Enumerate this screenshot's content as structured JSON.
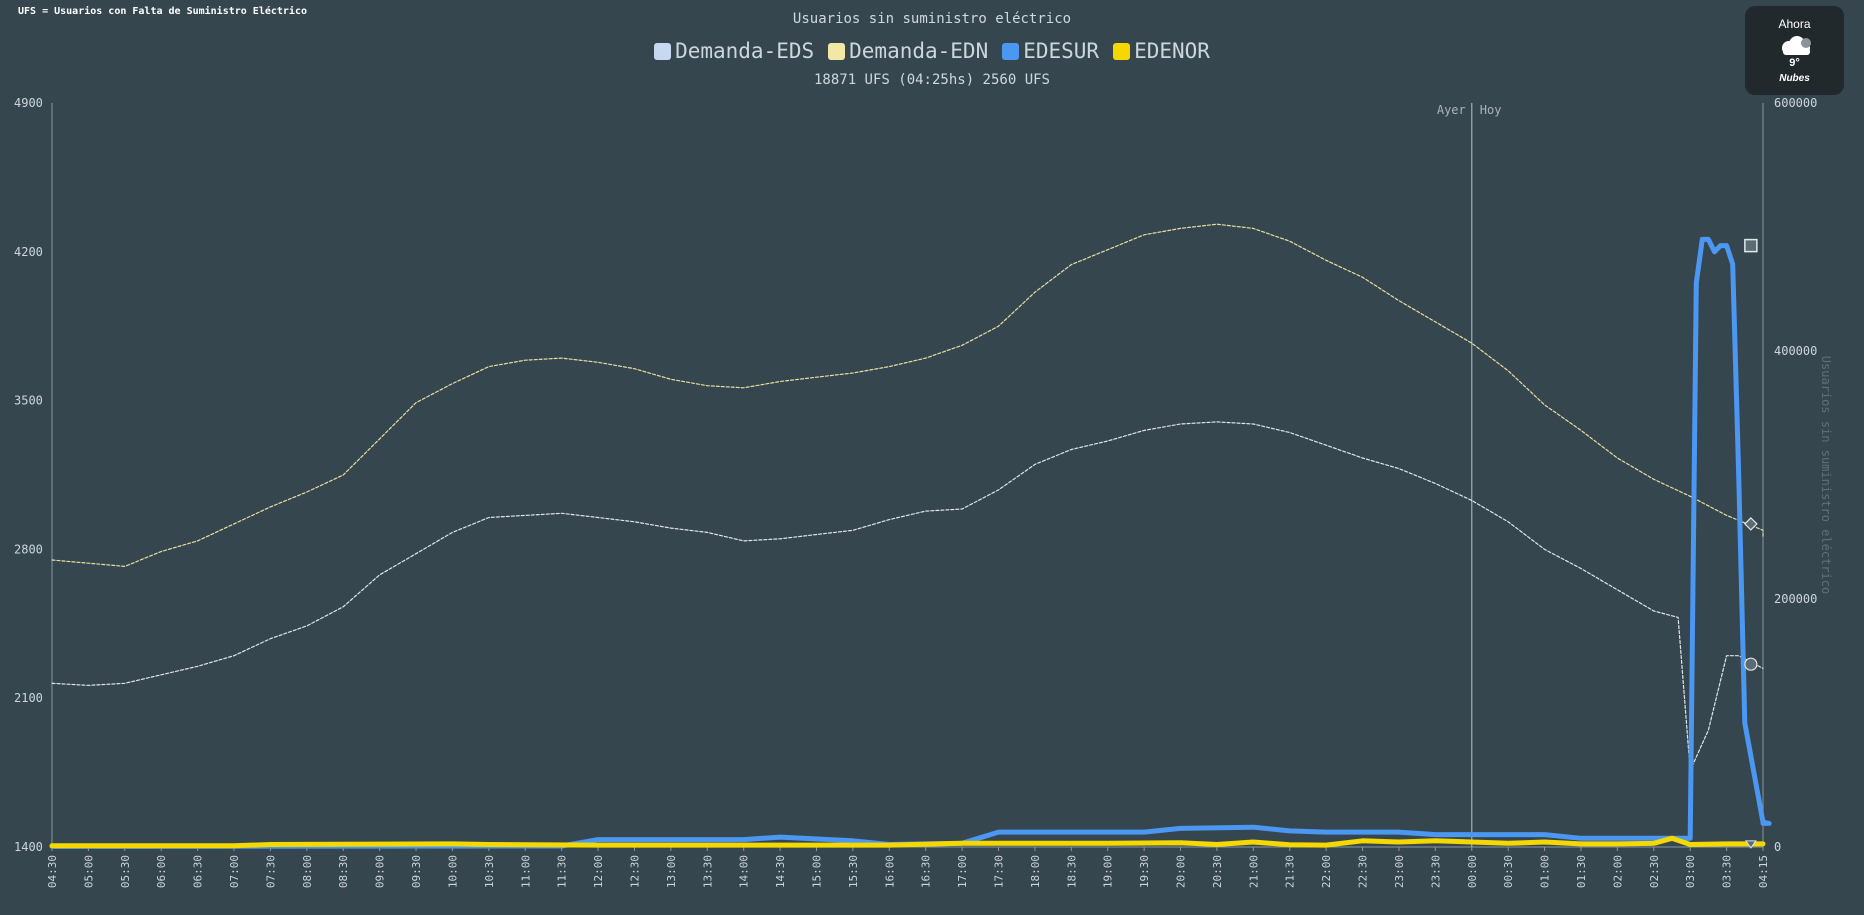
{
  "note": "UFS = Usuarios con Falta de Suministro Eléctrico",
  "weather": {
    "title": "Ahora",
    "icon": "cloud-icon",
    "temp": "9°",
    "description": "Nubes"
  },
  "colors": {
    "background": "#36464f",
    "edesur": "#4b97f1",
    "edenor": "#f5d800",
    "demanda_eds": "#cfdff0",
    "demanda_edn": "#f0e6a0"
  },
  "chart_data": {
    "type": "line",
    "title": "Usuarios sin suministro eléctrico",
    "subtitle": "18871 UFS (04:25hs) 2560 UFS",
    "legend": [
      {
        "name": "Demanda-EDS",
        "color": "#c6d9f1"
      },
      {
        "name": "Demanda-EDN",
        "color": "#f3e7a6"
      },
      {
        "name": "EDESUR",
        "color": "#4b97f1"
      },
      {
        "name": "EDENOR",
        "color": "#f5d800"
      }
    ],
    "legend_position": "top-center",
    "x_ticks": [
      "04:30",
      "05:00",
      "05:30",
      "06:00",
      "06:30",
      "07:00",
      "07:30",
      "08:00",
      "08:30",
      "09:00",
      "09:30",
      "10:00",
      "10:30",
      "11:00",
      "11:30",
      "12:00",
      "12:30",
      "13:00",
      "13:30",
      "14:00",
      "14:30",
      "15:00",
      "15:30",
      "16:00",
      "16:30",
      "17:00",
      "17:30",
      "18:00",
      "18:30",
      "19:00",
      "19:30",
      "20:00",
      "20:30",
      "21:00",
      "21:30",
      "22:00",
      "22:30",
      "23:00",
      "23:30",
      "00:00",
      "00:30",
      "01:00",
      "01:30",
      "02:00",
      "02:30",
      "03:00",
      "03:30",
      "04:15"
    ],
    "y_left": {
      "ticks": [
        1400,
        2100,
        2800,
        3500,
        4200,
        4900
      ],
      "min": 1400,
      "max": 4900
    },
    "y_right": {
      "ticks": [
        0,
        200000,
        400000,
        600000
      ],
      "ylabel": "Usuarios sin suministro eléctrico",
      "min": 0,
      "max": 600000
    },
    "annotations": {
      "ayer": "Ayer",
      "hoy": "Hoy",
      "divider_at": "00:00"
    },
    "series": [
      {
        "name": "Demanda-EDN",
        "axis": "left",
        "color": "#e6dfa1",
        "style": "dashed",
        "x": [
          "04:30",
          "05:00",
          "05:30",
          "06:00",
          "06:30",
          "07:00",
          "07:30",
          "08:00",
          "08:30",
          "09:00",
          "09:30",
          "10:00",
          "10:30",
          "11:00",
          "11:30",
          "12:00",
          "12:30",
          "13:00",
          "13:30",
          "14:00",
          "14:30",
          "15:00",
          "15:30",
          "16:00",
          "16:30",
          "17:00",
          "17:30",
          "18:00",
          "18:30",
          "19:00",
          "19:30",
          "20:00",
          "20:30",
          "21:00",
          "21:30",
          "22:00",
          "22:30",
          "23:00",
          "23:30",
          "00:00",
          "00:30",
          "01:00",
          "01:30",
          "02:00",
          "02:30",
          "03:00",
          "03:30",
          "04:00",
          "04:15"
        ],
        "values": [
          2750,
          2735,
          2720,
          2790,
          2840,
          2920,
          3000,
          3070,
          3150,
          3320,
          3490,
          3580,
          3660,
          3690,
          3700,
          3680,
          3650,
          3600,
          3570,
          3560,
          3590,
          3610,
          3630,
          3660,
          3700,
          3760,
          3850,
          4010,
          4140,
          4210,
          4280,
          4310,
          4330,
          4310,
          4250,
          4160,
          4080,
          3970,
          3870,
          3770,
          3640,
          3480,
          3360,
          3230,
          3130,
          3050,
          2960,
          2890,
          2860
        ]
      },
      {
        "name": "Demanda-EDS",
        "axis": "left",
        "color": "#dfe5ea",
        "style": "dashed",
        "x": [
          "04:30",
          "05:00",
          "05:30",
          "06:00",
          "06:30",
          "07:00",
          "07:30",
          "08:00",
          "08:30",
          "09:00",
          "09:30",
          "10:00",
          "10:30",
          "11:00",
          "11:30",
          "12:00",
          "12:30",
          "13:00",
          "13:30",
          "14:00",
          "14:30",
          "15:00",
          "15:30",
          "16:00",
          "16:30",
          "17:00",
          "17:30",
          "18:00",
          "18:30",
          "19:00",
          "19:30",
          "20:00",
          "20:30",
          "21:00",
          "21:30",
          "22:00",
          "22:30",
          "23:00",
          "23:30",
          "00:00",
          "00:30",
          "01:00",
          "01:30",
          "02:00",
          "02:30",
          "02:50",
          "03:00",
          "03:15",
          "03:30",
          "03:40",
          "04:00",
          "04:15"
        ],
        "values": [
          2170,
          2160,
          2170,
          2210,
          2250,
          2300,
          2380,
          2440,
          2530,
          2680,
          2780,
          2880,
          2950,
          2960,
          2970,
          2950,
          2930,
          2900,
          2880,
          2840,
          2850,
          2870,
          2890,
          2940,
          2980,
          2990,
          3080,
          3200,
          3270,
          3310,
          3360,
          3390,
          3400,
          3390,
          3350,
          3290,
          3230,
          3180,
          3110,
          3030,
          2930,
          2800,
          2710,
          2610,
          2510,
          2480,
          1760,
          1950,
          2300,
          2300,
          2240,
          2240
        ]
      },
      {
        "name": "EDESUR",
        "axis": "right",
        "color": "#4b97f1",
        "style": "solid",
        "x": [
          "04:30",
          "11:30",
          "12:00",
          "14:00",
          "14:30",
          "15:30",
          "16:00",
          "17:00",
          "17:30",
          "19:00",
          "19:30",
          "20:00",
          "21:00",
          "21:30",
          "22:00",
          "23:00",
          "23:30",
          "00:00",
          "01:00",
          "01:30",
          "02:00",
          "02:30",
          "03:00",
          "03:05",
          "03:10",
          "03:15",
          "03:20",
          "03:25",
          "03:30",
          "03:35",
          "03:40",
          "03:45",
          "04:00",
          "04:05",
          "04:15"
        ],
        "values": [
          500,
          800,
          6000,
          6000,
          8000,
          5000,
          2000,
          3000,
          12000,
          12000,
          12000,
          15000,
          16000,
          13000,
          12000,
          12000,
          10000,
          10000,
          10000,
          7000,
          7000,
          7000,
          7000,
          455000,
          490000,
          490000,
          480000,
          485000,
          485000,
          470000,
          300000,
          100000,
          20000,
          19000,
          19000
        ]
      },
      {
        "name": "EDENOR",
        "axis": "right",
        "color": "#f5d800",
        "style": "solid",
        "x": [
          "04:30",
          "07:00",
          "07:30",
          "10:00",
          "10:30",
          "12:00",
          "16:00",
          "17:00",
          "19:00",
          "20:00",
          "20:30",
          "21:00",
          "21:30",
          "22:00",
          "22:30",
          "23:00",
          "23:30",
          "00:00",
          "00:30",
          "01:00",
          "01:30",
          "02:00",
          "02:30",
          "02:45",
          "03:00",
          "03:30",
          "04:00",
          "04:15"
        ],
        "values": [
          1000,
          1000,
          2000,
          2500,
          2000,
          1500,
          1500,
          3000,
          3000,
          3500,
          2000,
          4000,
          1800,
          1500,
          5000,
          4000,
          5000,
          4000,
          3000,
          4000,
          2500,
          2500,
          3000,
          7000,
          2000,
          2500,
          2500,
          2500
        ]
      }
    ]
  }
}
